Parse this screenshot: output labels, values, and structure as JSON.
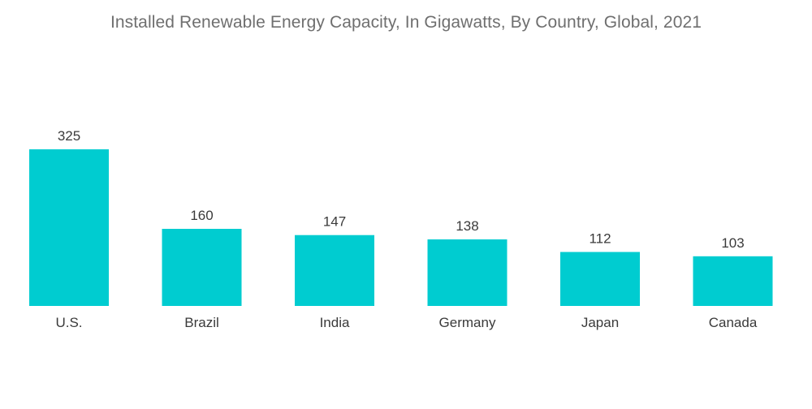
{
  "chart_data": {
    "type": "bar",
    "title": "Installed Renewable Energy Capacity, In Gigawatts, By Country, Global, 2021",
    "categories": [
      "U.S.",
      "Brazil",
      "India",
      "Germany",
      "Japan",
      "Canada"
    ],
    "values": [
      325,
      160,
      147,
      138,
      112,
      103
    ],
    "xlabel": "",
    "ylabel": "",
    "ylim": [
      0,
      325
    ],
    "grid": false,
    "legend": "none",
    "bar_color": "#00ccd0"
  }
}
